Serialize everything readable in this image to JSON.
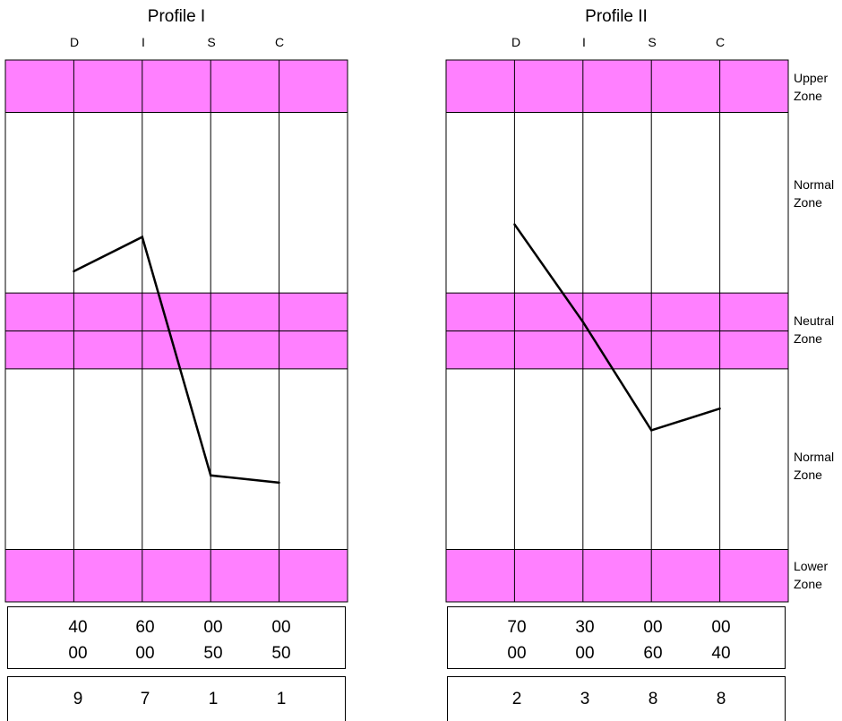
{
  "colors": {
    "band": "#ff80ff",
    "grid": "#000000",
    "line": "#000000"
  },
  "zone_labels": [
    {
      "line1": "Upper",
      "line2": "Zone"
    },
    {
      "line1": "Normal",
      "line2": "Zone"
    },
    {
      "line1": "Neutral",
      "line2": "Zone"
    },
    {
      "line1": "Normal",
      "line2": "Zone"
    },
    {
      "line1": "Lower",
      "line2": "Zone"
    }
  ],
  "chart_data": [
    {
      "type": "line",
      "title": "Profile I",
      "categories": [
        "D",
        "I",
        "S",
        "C"
      ],
      "values": [
        0.33,
        0.52,
        -0.8,
        -0.84
      ],
      "ylim": [
        -1.5,
        1.5
      ],
      "bands": {
        "upper": [
          1.21,
          1.5
        ],
        "neutral": [
          -0.21,
          0.21
        ],
        "lower": [
          -1.5,
          -1.21
        ]
      },
      "score_rows": [
        [
          "40",
          "60",
          "00",
          "00"
        ],
        [
          "00",
          "00",
          "50",
          "50"
        ]
      ],
      "totals": [
        "9",
        "7",
        "1",
        "1"
      ]
    },
    {
      "type": "line",
      "title": "Profile II",
      "categories": [
        "D",
        "I",
        "S",
        "C"
      ],
      "values": [
        0.59,
        0.05,
        -0.55,
        -0.43
      ],
      "ylim": [
        -1.5,
        1.5
      ],
      "bands": {
        "upper": [
          1.21,
          1.5
        ],
        "neutral": [
          -0.21,
          0.21
        ],
        "lower": [
          -1.5,
          -1.21
        ]
      },
      "score_rows": [
        [
          "70",
          "30",
          "00",
          "00"
        ],
        [
          "00",
          "00",
          "60",
          "40"
        ]
      ],
      "totals": [
        "2",
        "3",
        "8",
        "8"
      ]
    }
  ]
}
